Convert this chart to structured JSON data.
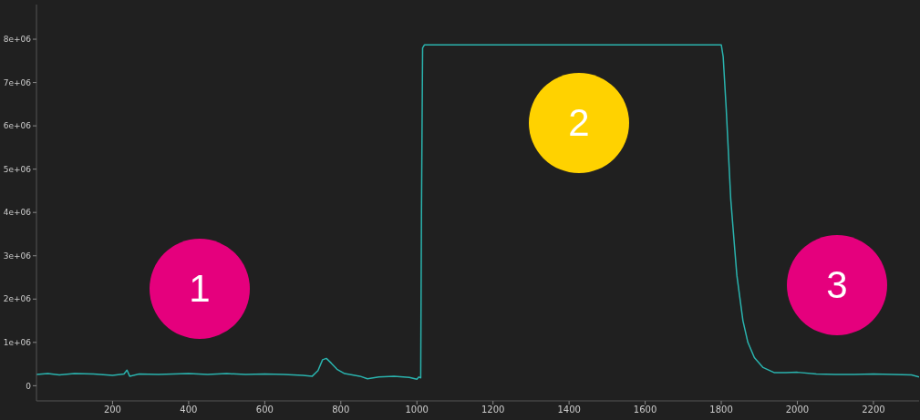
{
  "chart_data": {
    "type": "line",
    "annotations": [
      "1",
      "2",
      "3"
    ],
    "x": [
      0,
      30,
      60,
      100,
      150,
      200,
      230,
      238,
      245,
      270,
      320,
      400,
      450,
      500,
      550,
      600,
      650,
      700,
      725,
      740,
      752,
      762,
      775,
      790,
      810,
      850,
      870,
      900,
      940,
      980,
      1000,
      1005,
      1010,
      1012,
      1015,
      1020,
      1800,
      1805,
      1813,
      1825,
      1835,
      1841,
      1857,
      1870,
      1887,
      1910,
      1940,
      1970,
      2000,
      2050,
      2100,
      2150,
      2200,
      2250,
      2300,
      2320
    ],
    "series": [
      {
        "color": "#2ab3ae",
        "values": [
          260000,
          280000,
          250000,
          280000,
          270000,
          240000,
          270000,
          360000,
          220000,
          270000,
          260000,
          280000,
          260000,
          280000,
          260000,
          270000,
          260000,
          240000,
          220000,
          350000,
          600000,
          630000,
          520000,
          380000,
          280000,
          220000,
          160000,
          200000,
          220000,
          190000,
          150000,
          200000,
          180000,
          4000000,
          7800000,
          7870000,
          7870000,
          7600000,
          6400000,
          4300000,
          3200000,
          2550000,
          1500000,
          1000000,
          650000,
          420000,
          300000,
          300000,
          310000,
          270000,
          260000,
          260000,
          270000,
          260000,
          250000,
          200000
        ]
      }
    ],
    "xlim": [
      0,
      2320
    ],
    "ylim": [
      -350000,
      8800000
    ],
    "xticks": [
      200,
      400,
      600,
      800,
      1000,
      1200,
      1400,
      1600,
      1800,
      2000,
      2200
    ],
    "yticks": [
      {
        "value": 0,
        "label": "0"
      },
      {
        "value": 1000000,
        "label": "1e+06"
      },
      {
        "value": 2000000,
        "label": "2e+06"
      },
      {
        "value": 3000000,
        "label": "3e+06"
      },
      {
        "value": 4000000,
        "label": "4e+06"
      },
      {
        "value": 5000000,
        "label": "5e+06"
      },
      {
        "value": 6000000,
        "label": "6e+06"
      },
      {
        "value": 7000000,
        "label": "7e+06"
      },
      {
        "value": 8000000,
        "label": "8e+06"
      }
    ],
    "grid": false,
    "legend": false,
    "marker": "none",
    "line_style": "solid"
  }
}
